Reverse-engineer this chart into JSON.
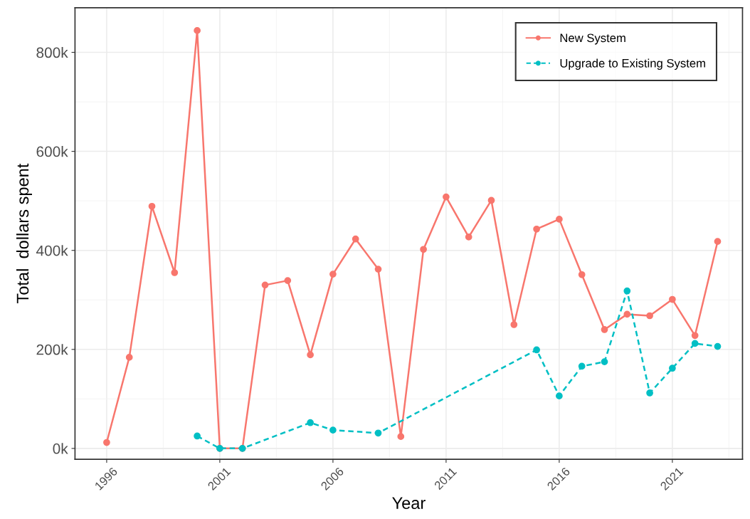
{
  "chart_data": {
    "type": "line",
    "xlabel": "Year",
    "ylabel": "Total  dollars spent",
    "xlim": [
      1994.6,
      2024.1
    ],
    "ylim": [
      -22000,
      890000
    ],
    "xticks": [
      1996,
      2001,
      2006,
      2011,
      2016,
      2021
    ],
    "yticks": [
      {
        "value": 0,
        "label": "0k"
      },
      {
        "value": 200000,
        "label": "200k"
      },
      {
        "value": 400000,
        "label": "400k"
      },
      {
        "value": 600000,
        "label": "600k"
      },
      {
        "value": 800000,
        "label": "800k"
      }
    ],
    "grid": true,
    "legend": "top right",
    "marker": "circle",
    "series": [
      {
        "name": "New System",
        "color": "#f8766d",
        "line_style": "solid",
        "x": [
          1996,
          1997,
          1998,
          1999,
          2000,
          2001,
          2002,
          2003,
          2004,
          2005,
          2006,
          2007,
          2008,
          2009,
          2010,
          2011,
          2012,
          2013,
          2014,
          2015,
          2016,
          2017,
          2018,
          2019,
          2020,
          2021,
          2022,
          2023
        ],
        "values": [
          12000,
          184000,
          489000,
          355000,
          844000,
          0,
          0,
          330000,
          339000,
          189000,
          352000,
          423000,
          362000,
          24000,
          402000,
          508000,
          427000,
          501000,
          250000,
          443000,
          463000,
          351000,
          240000,
          271000,
          268000,
          301000,
          228000,
          418000
        ]
      },
      {
        "name": "Upgrade to Existing System",
        "color": "#00bfc4",
        "line_style": "dashed",
        "x": [
          2000,
          2001,
          2002,
          2005,
          2006,
          2008,
          2015,
          2016,
          2017,
          2018,
          2019,
          2020,
          2021,
          2022,
          2023
        ],
        "values": [
          25000,
          0,
          0,
          52000,
          37000,
          31000,
          199000,
          106000,
          166000,
          175000,
          318000,
          112000,
          162000,
          212000,
          206000
        ]
      }
    ]
  }
}
